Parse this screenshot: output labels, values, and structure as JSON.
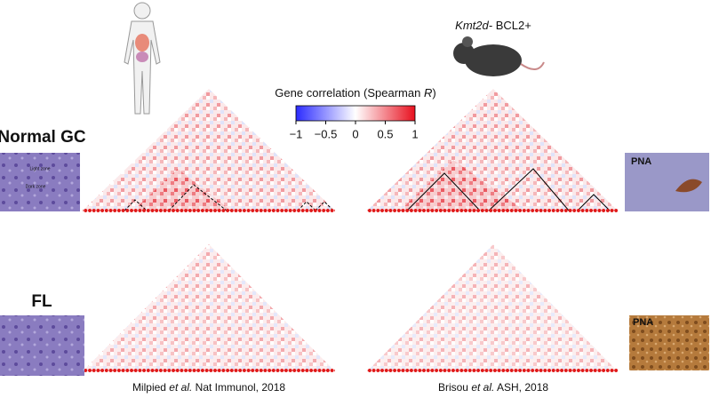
{
  "colorbar": {
    "title_parts": [
      "Gene correlation (Spearman",
      "R",
      ")"
    ],
    "xlim": [
      -1,
      1
    ],
    "xticks": [
      {
        "value": -1,
        "label": "−1"
      },
      {
        "value": -0.5,
        "label": "−0.5"
      },
      0,
      0.5,
      1
    ]
  },
  "mouse_label": [
    "Kmt2d-",
    "BCL2+"
  ],
  "rows": [
    "Normal GC",
    "FL"
  ],
  "micrograph": {
    "light_zone": "Light zone",
    "dark_zone": "Dark zone"
  },
  "stain_labels": [
    "PNA",
    "PNA"
  ],
  "citations": [
    [
      "Milpied",
      "et al.",
      "Nat Immunol, 2018"
    ],
    [
      "Brisou",
      "et al.",
      "ASH, 2018"
    ]
  ]
}
